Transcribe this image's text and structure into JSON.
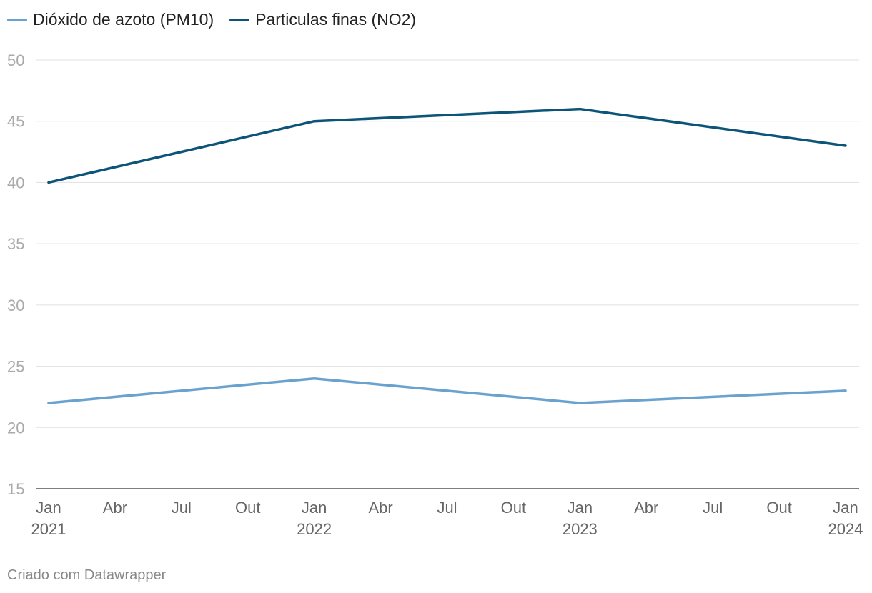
{
  "chart_data": {
    "type": "line",
    "title": "",
    "xlabel": "",
    "ylabel": "",
    "x": [
      "2021-01",
      "2022-01",
      "2023-01",
      "2024-01"
    ],
    "series": [
      {
        "name": "Dióxido de azoto (PM10)",
        "color": "#6aa2cf",
        "values": [
          22,
          24,
          22,
          23
        ]
      },
      {
        "name": "Particulas finas (NO2)",
        "color": "#0d5479",
        "values": [
          40,
          45,
          46,
          43
        ]
      }
    ],
    "ylim": [
      15,
      50
    ],
    "yticks": [
      "15",
      "20",
      "25",
      "30",
      "35",
      "40",
      "45",
      "50"
    ],
    "xticks": [
      {
        "date": "2021-01",
        "month": "Jan",
        "year": "2021"
      },
      {
        "date": "2021-04",
        "month": "Abr",
        "year": ""
      },
      {
        "date": "2021-07",
        "month": "Jul",
        "year": ""
      },
      {
        "date": "2021-10",
        "month": "Out",
        "year": ""
      },
      {
        "date": "2022-01",
        "month": "Jan",
        "year": "2022"
      },
      {
        "date": "2022-04",
        "month": "Abr",
        "year": ""
      },
      {
        "date": "2022-07",
        "month": "Jul",
        "year": ""
      },
      {
        "date": "2022-10",
        "month": "Out",
        "year": ""
      },
      {
        "date": "2023-01",
        "month": "Jan",
        "year": "2023"
      },
      {
        "date": "2023-04",
        "month": "Abr",
        "year": ""
      },
      {
        "date": "2023-07",
        "month": "Jul",
        "year": ""
      },
      {
        "date": "2023-10",
        "month": "Out",
        "year": ""
      },
      {
        "date": "2024-01",
        "month": "Jan",
        "year": "2024"
      }
    ],
    "grid": true,
    "legend_position": "top-left"
  },
  "footer": {
    "credit": "Criado com Datawrapper"
  }
}
